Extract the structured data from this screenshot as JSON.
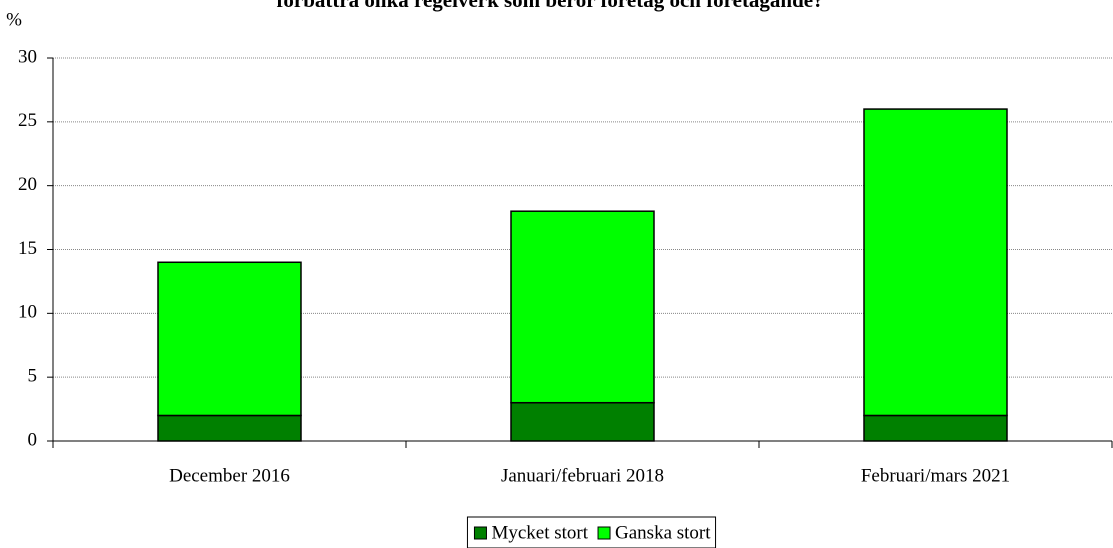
{
  "chart_data": {
    "type": "stacked_bar",
    "title": "förbättra olika regelverk som berör företag och företagande?",
    "y_label": "%",
    "categories": [
      "December 2016",
      "Januari/februari 2018",
      "Februari/mars 2021"
    ],
    "series": [
      {
        "name": "Mycket stort",
        "color": "#008000",
        "values": [
          2,
          3,
          2
        ]
      },
      {
        "name": "Ganska stort",
        "color": "#00ff00",
        "values": [
          12,
          15,
          24
        ]
      }
    ],
    "ylim": [
      0,
      30
    ],
    "yticks": [
      0,
      5,
      10,
      15,
      20,
      25,
      30
    ],
    "grid": true,
    "legend": "bottom"
  }
}
